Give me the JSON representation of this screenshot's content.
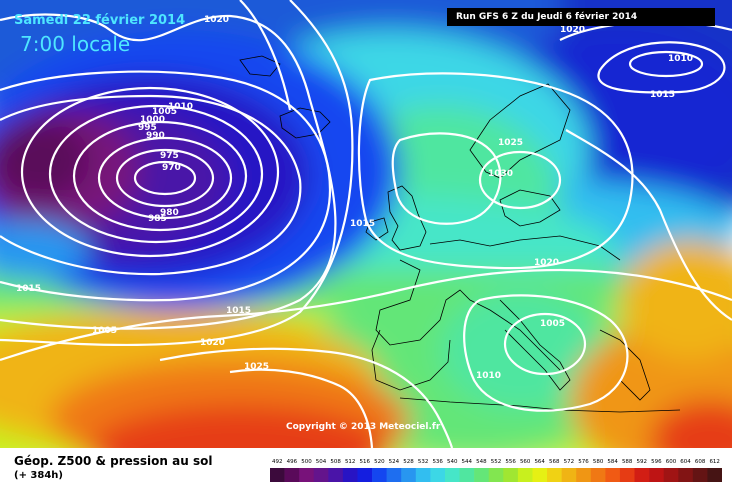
{
  "header": {
    "date": "Samedi 22 février 2014",
    "time": "7:00 locale",
    "run": "Run GFS 6 Z du Jeudi 6 février 2014"
  },
  "copyright": "Copyright © 2013 Meteociel.fr",
  "footer": {
    "title": "Géop. Z500 & pression au sol",
    "subtitle": "(+ 384h)"
  },
  "isobar_labels": [
    "1020",
    "1020",
    "1010",
    "1015",
    "1010",
    "1005",
    "1000",
    "995",
    "990",
    "975",
    "970",
    "980",
    "985",
    "1015",
    "1025",
    "1030",
    "1015",
    "1020",
    "1015",
    "1005",
    "1015",
    "1020",
    "1025",
    "1005",
    "1010"
  ],
  "scale": {
    "values": [
      "492",
      "496",
      "500",
      "504",
      "508",
      "512",
      "516",
      "520",
      "524",
      "528",
      "532",
      "536",
      "540",
      "544",
      "548",
      "552",
      "556",
      "560",
      "564",
      "568",
      "572",
      "576",
      "580",
      "584",
      "588",
      "592",
      "596",
      "600",
      "604",
      "608",
      "612"
    ],
    "colors": [
      "#3c0a3c",
      "#5a0a5a",
      "#78127a",
      "#64148c",
      "#4a14a8",
      "#2814c4",
      "#141ee0",
      "#1446f0",
      "#1e6ef0",
      "#2896f0",
      "#32bef0",
      "#3cd7e6",
      "#46e6c8",
      "#50e6a0",
      "#64e678",
      "#82e650",
      "#a0e632",
      "#c8f01e",
      "#e6f014",
      "#f0d214",
      "#f0b414",
      "#f09614",
      "#f07814",
      "#f05a14",
      "#e63c14",
      "#d21e14",
      "#be1414",
      "#a01414",
      "#821414",
      "#641414",
      "#461414"
    ]
  }
}
